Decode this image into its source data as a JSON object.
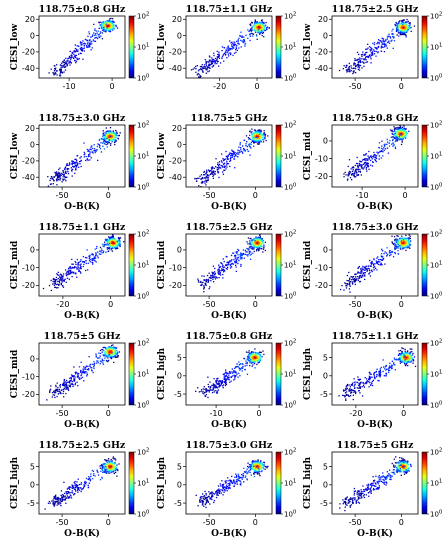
{
  "figure": {
    "caption": ""
  },
  "chart_data": [
    {
      "type": "scatter",
      "title": "118.75±0.8 GHz",
      "xlabel": "",
      "ylabel": "CESI_low",
      "xlim": [
        -17,
        3
      ],
      "ylim": [
        -52,
        24
      ],
      "xticks": [
        -10,
        0
      ],
      "yticks": [
        -40,
        -20,
        0,
        20
      ],
      "colorbar": {
        "range": [
          1,
          100
        ],
        "ticks": [
          "10^0",
          "10^1",
          "10^2"
        ]
      },
      "density_center": [
        -1,
        12
      ],
      "spread_low": [
        -13,
        -45
      ]
    },
    {
      "type": "scatter",
      "title": "118.75±1.1 GHz",
      "xlabel": "",
      "ylabel": "CESI_low",
      "xlim": [
        -38,
        8
      ],
      "ylim": [
        -52,
        24
      ],
      "xticks": [
        -20,
        0
      ],
      "yticks": [
        -40,
        -20,
        0,
        20
      ],
      "colorbar": {
        "range": [
          1,
          100
        ],
        "ticks": [
          "10^0",
          "10^1",
          "10^2"
        ]
      },
      "density_center": [
        1,
        10
      ],
      "spread_low": [
        -32,
        -45
      ]
    },
    {
      "type": "scatter",
      "title": "118.75±2.5 GHz",
      "xlabel": "",
      "ylabel": "CESI_low",
      "xlim": [
        -75,
        18
      ],
      "ylim": [
        -52,
        24
      ],
      "xticks": [
        -50,
        0
      ],
      "yticks": [
        -40,
        -20,
        0,
        20
      ],
      "colorbar": {
        "range": [
          1,
          100
        ],
        "ticks": [
          "10^0",
          "10^1",
          "10^2"
        ]
      },
      "density_center": [
        2,
        10
      ],
      "spread_low": [
        -60,
        -45
      ]
    },
    {
      "type": "scatter",
      "title": "118.75±3.0 GHz",
      "xlabel": "O-B(K)",
      "ylabel": "CESI_low",
      "xlim": [
        -75,
        18
      ],
      "ylim": [
        -52,
        24
      ],
      "xticks": [
        -50,
        0
      ],
      "yticks": [
        -40,
        -20,
        0,
        20
      ],
      "colorbar": {
        "range": [
          1,
          100
        ],
        "ticks": [
          "10^0",
          "10^1",
          "10^2"
        ]
      },
      "density_center": [
        2,
        10
      ],
      "spread_low": [
        -60,
        -45
      ]
    },
    {
      "type": "scatter",
      "title": "118.75±5 GHz",
      "xlabel": "O-B(K)",
      "ylabel": "CESI_low",
      "xlim": [
        -75,
        18
      ],
      "ylim": [
        -52,
        24
      ],
      "xticks": [
        -50,
        0
      ],
      "yticks": [
        -40,
        -20,
        0,
        20
      ],
      "colorbar": {
        "range": [
          1,
          100
        ],
        "ticks": [
          "10^0",
          "10^1",
          "10^2"
        ]
      },
      "density_center": [
        2,
        10
      ],
      "spread_low": [
        -60,
        -45
      ]
    },
    {
      "type": "scatter",
      "title": "118.75±0.8 GHz",
      "xlabel": "O-B(K)",
      "ylabel": "CESI_mid",
      "xlim": [
        -17,
        3
      ],
      "ylim": [
        -26,
        9
      ],
      "xticks": [
        -10,
        0
      ],
      "yticks": [
        -20,
        -10,
        0
      ],
      "colorbar": {
        "range": [
          1,
          100
        ],
        "ticks": [
          "10^0",
          "10^1",
          "10^2"
        ]
      },
      "density_center": [
        -1,
        4
      ],
      "spread_low": [
        -13,
        -20
      ]
    },
    {
      "type": "scatter",
      "title": "118.75±1.1 GHz",
      "xlabel": "O-B(K)",
      "ylabel": "CESI_mid",
      "xlim": [
        -30,
        6
      ],
      "ylim": [
        -26,
        9
      ],
      "xticks": [
        -20,
        0
      ],
      "yticks": [
        -20,
        -10,
        0
      ],
      "colorbar": {
        "range": [
          1,
          100
        ],
        "ticks": [
          "10^0",
          "10^1",
          "10^2"
        ]
      },
      "density_center": [
        1,
        4
      ],
      "spread_low": [
        -25,
        -20
      ]
    },
    {
      "type": "scatter",
      "title": "118.75±2.5 GHz",
      "xlabel": "O-B(K)",
      "ylabel": "CESI_mid",
      "xlim": [
        -75,
        18
      ],
      "ylim": [
        -26,
        9
      ],
      "xticks": [
        -50,
        0
      ],
      "yticks": [
        -20,
        -10,
        0
      ],
      "colorbar": {
        "range": [
          1,
          100
        ],
        "ticks": [
          "10^0",
          "10^1",
          "10^2"
        ]
      },
      "density_center": [
        2,
        4
      ],
      "spread_low": [
        -60,
        -20
      ]
    },
    {
      "type": "scatter",
      "title": "118.75±3.0 GHz",
      "xlabel": "O-B(K)",
      "ylabel": "CESI_mid",
      "xlim": [
        -75,
        18
      ],
      "ylim": [
        -26,
        9
      ],
      "xticks": [
        -50,
        0
      ],
      "yticks": [
        -20,
        -10,
        0
      ],
      "colorbar": {
        "range": [
          1,
          100
        ],
        "ticks": [
          "10^0",
          "10^1",
          "10^2"
        ]
      },
      "density_center": [
        2,
        4
      ],
      "spread_low": [
        -60,
        -20
      ]
    },
    {
      "type": "scatter",
      "title": "118.75±5 GHz",
      "xlabel": "O-B(K)",
      "ylabel": "CESI_mid",
      "xlim": [
        -75,
        18
      ],
      "ylim": [
        -26,
        9
      ],
      "xticks": [
        -50,
        0
      ],
      "yticks": [
        -20,
        -10,
        0
      ],
      "colorbar": {
        "range": [
          1,
          100
        ],
        "ticks": [
          "10^0",
          "10^1",
          "10^2"
        ]
      },
      "density_center": [
        2,
        4
      ],
      "spread_low": [
        -60,
        -20
      ]
    },
    {
      "type": "scatter",
      "title": "118.75±0.8 GHz",
      "xlabel": "O-B(K)",
      "ylabel": "CESI_high",
      "xlim": [
        -17,
        3
      ],
      "ylim": [
        -8,
        9
      ],
      "xticks": [
        -10,
        0
      ],
      "yticks": [
        -5,
        0,
        5
      ],
      "colorbar": {
        "range": [
          1,
          100
        ],
        "ticks": [
          "10^0",
          "10^1",
          "10^2"
        ]
      },
      "density_center": [
        -1,
        5
      ],
      "spread_low": [
        -13,
        -5
      ]
    },
    {
      "type": "scatter",
      "title": "118.75±1.1 GHz",
      "xlabel": "O-B(K)",
      "ylabel": "CESI_high",
      "xlim": [
        -30,
        6
      ],
      "ylim": [
        -8,
        9
      ],
      "xticks": [
        -20,
        0
      ],
      "yticks": [
        -5,
        0,
        5
      ],
      "colorbar": {
        "range": [
          1,
          100
        ],
        "ticks": [
          "10^0",
          "10^1",
          "10^2"
        ]
      },
      "density_center": [
        1,
        5
      ],
      "spread_low": [
        -25,
        -5
      ]
    },
    {
      "type": "scatter",
      "title": "118.75±2.5 GHz",
      "xlabel": "O-B(K)",
      "ylabel": "CESI_high",
      "xlim": [
        -75,
        18
      ],
      "ylim": [
        -8,
        9
      ],
      "xticks": [
        -50,
        0
      ],
      "yticks": [
        -5,
        0,
        5
      ],
      "colorbar": {
        "range": [
          1,
          100
        ],
        "ticks": [
          "10^0",
          "10^1",
          "10^2"
        ]
      },
      "density_center": [
        2,
        5
      ],
      "spread_low": [
        -60,
        -5
      ]
    },
    {
      "type": "scatter",
      "title": "118.75±3.0 GHz",
      "xlabel": "O-B(K)",
      "ylabel": "CESI_high",
      "xlim": [
        -75,
        18
      ],
      "ylim": [
        -8,
        9
      ],
      "xticks": [
        -50,
        0
      ],
      "yticks": [
        -5,
        0,
        5
      ],
      "colorbar": {
        "range": [
          1,
          100
        ],
        "ticks": [
          "10^0",
          "10^1",
          "10^2"
        ]
      },
      "density_center": [
        2,
        5
      ],
      "spread_low": [
        -60,
        -5
      ]
    },
    {
      "type": "scatter",
      "title": "118.75±5 GHz",
      "xlabel": "O-B(K)",
      "ylabel": "CESI_high",
      "xlim": [
        -75,
        18
      ],
      "ylim": [
        -8,
        9
      ],
      "xticks": [
        -50,
        0
      ],
      "yticks": [
        -5,
        0,
        5
      ],
      "colorbar": {
        "range": [
          1,
          100
        ],
        "ticks": [
          "10^0",
          "10^1",
          "10^2"
        ]
      },
      "density_center": [
        2,
        5
      ],
      "spread_low": [
        -60,
        -5
      ]
    }
  ]
}
